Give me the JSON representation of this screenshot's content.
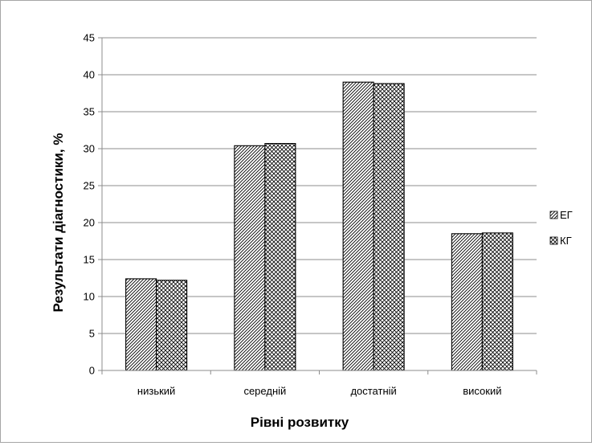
{
  "chart_data": {
    "type": "bar",
    "title": "",
    "xlabel": "Рівні розвитку",
    "ylabel": "Результати діагностики, %",
    "categories": [
      "низький",
      "середній",
      "достатній",
      "високий"
    ],
    "series": [
      {
        "name": "ЕГ",
        "values": [
          12.4,
          30.4,
          39.0,
          18.5
        ]
      },
      {
        "name": "КГ",
        "values": [
          12.2,
          30.7,
          38.8,
          18.6
        ]
      }
    ],
    "ylim": [
      0,
      45
    ],
    "yticks": [
      0,
      5,
      10,
      15,
      20,
      25,
      30,
      35,
      40,
      45
    ],
    "grid": true,
    "legend_position": "right"
  }
}
